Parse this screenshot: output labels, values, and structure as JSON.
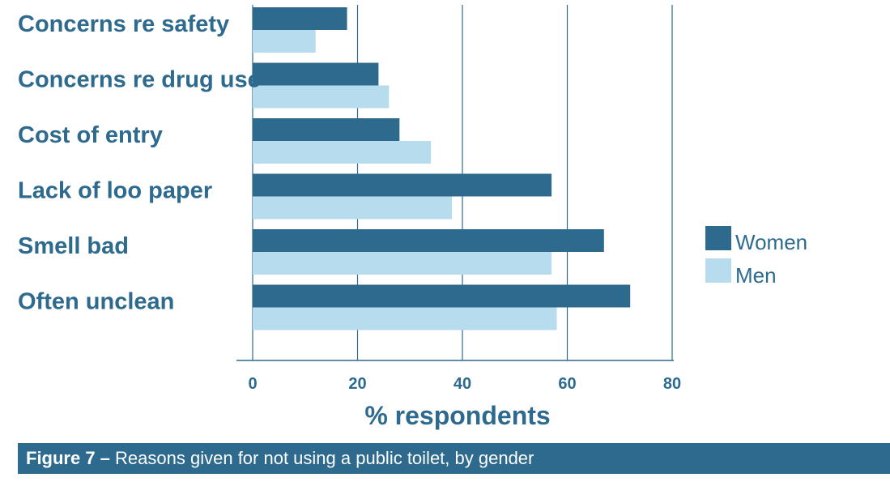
{
  "chart_data": {
    "type": "bar",
    "orientation": "horizontal",
    "categories": [
      "Concerns re safety",
      "Concerns re drug use",
      "Cost of entry",
      "Lack of loo paper",
      "Smell bad",
      "Often unclean"
    ],
    "series": [
      {
        "name": "Women",
        "color": "#2d6a8e",
        "values": [
          18,
          24,
          28,
          57,
          67,
          72
        ]
      },
      {
        "name": "Men",
        "color": "#b7dced",
        "values": [
          12,
          26,
          34,
          38,
          57,
          58
        ]
      }
    ],
    "xlabel": "% respondents",
    "xlim": [
      0,
      80
    ],
    "xticks": [
      "0",
      "20",
      "40",
      "60",
      "80"
    ],
    "grid": "vertical",
    "legend": "right"
  },
  "caption": {
    "figure": "Figure 7 –",
    "text": "Reasons given for not using a public toilet, by gender"
  }
}
